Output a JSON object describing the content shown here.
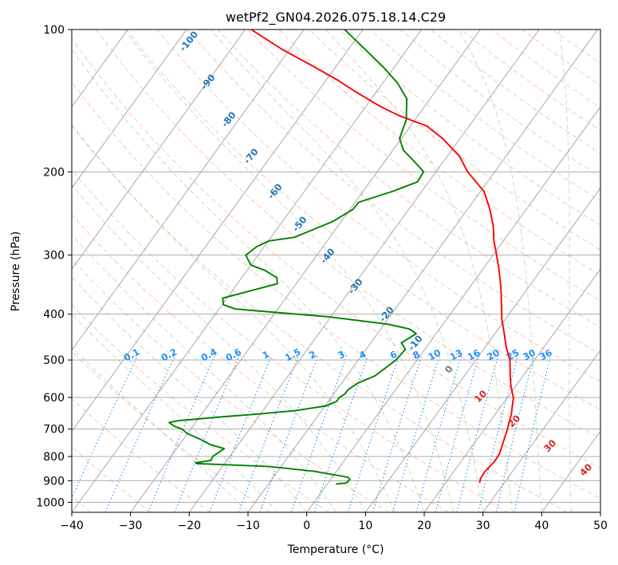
{
  "chart_data": {
    "type": "line",
    "subtype": "skew-t log-p diagram",
    "title": "wetPf2_GN04.2026.075.18.14.C29",
    "xlabel": "Temperature (°C)",
    "ylabel": "Pressure (hPa)",
    "xlim": [
      -40,
      50
    ],
    "ylim": [
      1050,
      100
    ],
    "yscale": "log",
    "x_ticks": [
      -40,
      -30,
      -20,
      -10,
      0,
      10,
      20,
      30,
      40,
      50
    ],
    "y_ticks": [
      100,
      200,
      300,
      400,
      500,
      600,
      700,
      800,
      900,
      1000
    ],
    "grid": true,
    "colors": {
      "temperature": "#ff0000",
      "dewpoint": "#008000",
      "isotherms": "#a0a0a0",
      "dry_adiabats": "#ff7f50",
      "moist_adiabats": "#2ca02c",
      "mixing_ratio": "#1e90ff"
    },
    "series": [
      {
        "key": "temperature",
        "p": [
          910,
          890,
          860,
          820,
          790,
          700,
          650,
          600,
          570,
          540,
          500,
          470,
          440,
          410,
          380,
          360,
          340,
          320,
          300,
          280,
          260,
          240,
          220,
          200,
          185,
          170,
          160,
          152,
          145,
          135,
          128,
          120,
          110,
          100
        ],
        "t": [
          25.8,
          25.4,
          25.3,
          25.7,
          25.6,
          23.9,
          22.7,
          21.0,
          19.3,
          17.8,
          15.8,
          13.6,
          11.6,
          9.4,
          7.4,
          6.0,
          4.4,
          2.6,
          0.6,
          -1.6,
          -3.6,
          -6.2,
          -9.4,
          -14.6,
          -18.0,
          -23.0,
          -27.2,
          -33.3,
          -37.8,
          -43.8,
          -48.0,
          -53.6,
          -61.4,
          -69.0
        ]
      },
      {
        "key": "dewpoint",
        "p": [
          915,
          910,
          895,
          885,
          860,
          840,
          828,
          825,
          815,
          800,
          770,
          755,
          735,
          715,
          700,
          690,
          678,
          672,
          660,
          650,
          640,
          625,
          612,
          600,
          590,
          578,
          560,
          540,
          500,
          475,
          460,
          440,
          430,
          420,
          405,
          395,
          390,
          382,
          370,
          345,
          335,
          323,
          315,
          300,
          288,
          280,
          275,
          255,
          240,
          232,
          220,
          210,
          200,
          190,
          180,
          170,
          155,
          140,
          130,
          120,
          100
        ],
        "t": [
          1.5,
          3.1,
          3.3,
          2.7,
          -3.8,
          -12.0,
          -24.8,
          -25.0,
          -22.7,
          -22.9,
          -21.9,
          -24.8,
          -27.2,
          -30.1,
          -31.5,
          -33.2,
          -34.5,
          -33.2,
          -26.5,
          -20.0,
          -14.5,
          -9.8,
          -8.6,
          -8.6,
          -8.1,
          -8.1,
          -7.3,
          -5.2,
          -3.6,
          -3.3,
          -4.8,
          -3.4,
          -5.1,
          -9.4,
          -20.5,
          -31.6,
          -37.2,
          -39.8,
          -40.7,
          -33.2,
          -34.0,
          -37.0,
          -40.0,
          -42.1,
          -41.3,
          -39.9,
          -36.0,
          -31.5,
          -29.5,
          -29.4,
          -25.0,
          -21.9,
          -22.1,
          -25.0,
          -28.2,
          -30.3,
          -31.5,
          -34.0,
          -37.4,
          -41.9,
          -53.1
        ]
      }
    ],
    "dry_adiabat_labels": [
      "-100",
      "-90",
      "-80",
      "-70",
      "-60",
      "-50",
      "-40",
      "-30",
      "-20",
      "-10"
    ],
    "moist_adiabat_labels": [
      "0",
      "10",
      "20",
      "30",
      "40"
    ],
    "mixing_ratio_labels": [
      "0.1",
      "0.2",
      "0.4",
      "0.6",
      "1",
      "1.5",
      "2",
      "3",
      "4",
      "6",
      "8",
      "10",
      "13",
      "16",
      "20",
      "25",
      "30",
      "36"
    ]
  }
}
